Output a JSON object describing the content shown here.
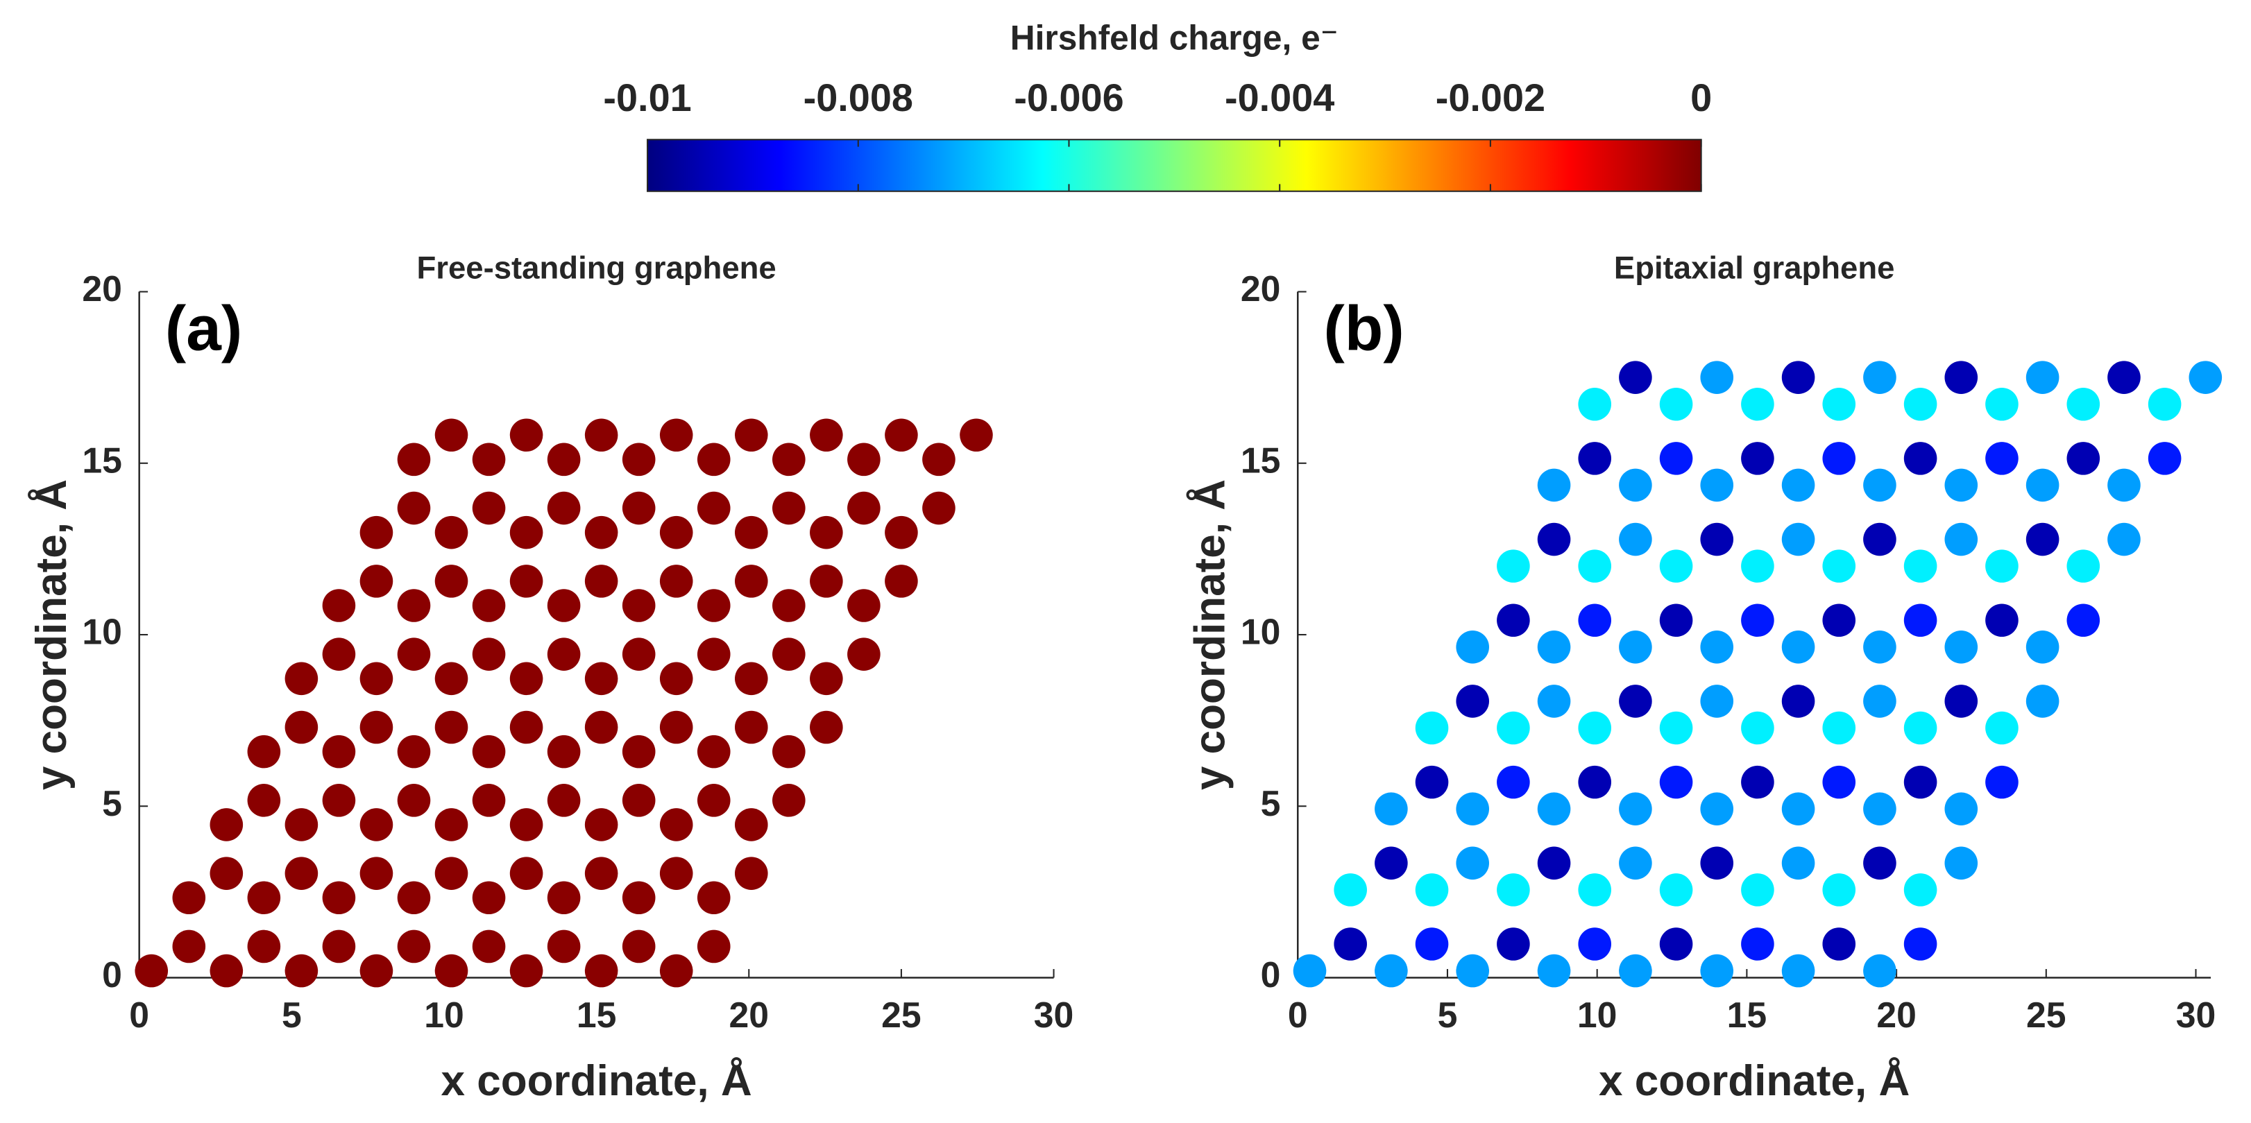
{
  "colorbar": {
    "title": "Hirshfeld charge, e⁻",
    "colormap": "jet",
    "clim": [
      -0.01,
      0
    ],
    "ticks": [
      -0.01,
      -0.008,
      -0.006,
      -0.004,
      -0.002,
      0
    ]
  },
  "chart_data": [
    {
      "type": "scatter",
      "title": "Free-standing graphene",
      "label": "(a)",
      "xlabel": "x coordinate, Å",
      "ylabel": "y coordinate, Å",
      "xlim": [
        0,
        30
      ],
      "ylim": [
        0,
        20
      ],
      "xticks": [
        0,
        5,
        10,
        15,
        20,
        25,
        30
      ],
      "yticks": [
        0,
        5,
        10,
        15,
        20
      ],
      "x": [
        0.4,
        2.86,
        5.32,
        7.78,
        10.24,
        12.7,
        15.16,
        17.62,
        1.63,
        4.09,
        6.55,
        9.01,
        11.47,
        13.93,
        16.39,
        18.85,
        1.63,
        4.09,
        6.55,
        9.01,
        11.47,
        13.93,
        16.39,
        18.85,
        2.86,
        5.32,
        7.78,
        10.24,
        12.7,
        15.16,
        17.62,
        20.08,
        2.86,
        5.32,
        7.78,
        10.24,
        12.7,
        15.16,
        17.62,
        20.08,
        4.09,
        6.55,
        9.01,
        11.47,
        13.93,
        16.39,
        18.85,
        21.31,
        4.09,
        6.55,
        9.01,
        11.47,
        13.93,
        16.39,
        18.85,
        21.31,
        5.32,
        7.78,
        10.24,
        12.7,
        15.16,
        17.62,
        20.08,
        22.54,
        5.32,
        7.78,
        10.24,
        12.7,
        15.16,
        17.62,
        20.08,
        22.54,
        6.55,
        9.01,
        11.47,
        13.93,
        16.39,
        18.85,
        21.31,
        23.77,
        6.55,
        9.01,
        11.47,
        13.93,
        16.39,
        18.85,
        21.31,
        23.77,
        7.78,
        10.24,
        12.7,
        15.16,
        17.62,
        20.08,
        22.54,
        25,
        7.78,
        10.24,
        12.7,
        15.16,
        17.62,
        20.08,
        22.54,
        25,
        9.01,
        11.47,
        13.93,
        16.39,
        18.85,
        21.31,
        23.77,
        26.23,
        9.01,
        11.47,
        13.93,
        16.39,
        18.85,
        21.31,
        23.77,
        26.23,
        10.24,
        12.7,
        15.16,
        17.62,
        20.08,
        22.54,
        25,
        27.46
      ],
      "y": [
        0.2,
        0.2,
        0.2,
        0.2,
        0.2,
        0.2,
        0.2,
        0.2,
        0.91,
        0.91,
        0.91,
        0.91,
        0.91,
        0.91,
        0.91,
        0.91,
        2.33,
        2.33,
        2.33,
        2.33,
        2.33,
        2.33,
        2.33,
        2.33,
        3.04,
        3.04,
        3.04,
        3.04,
        3.04,
        3.04,
        3.04,
        3.04,
        4.46,
        4.46,
        4.46,
        4.46,
        4.46,
        4.46,
        4.46,
        4.46,
        5.17,
        5.17,
        5.17,
        5.17,
        5.17,
        5.17,
        5.17,
        5.17,
        6.59,
        6.59,
        6.59,
        6.59,
        6.59,
        6.59,
        6.59,
        6.59,
        7.3,
        7.3,
        7.3,
        7.3,
        7.3,
        7.3,
        7.3,
        7.3,
        8.72,
        8.72,
        8.72,
        8.72,
        8.72,
        8.72,
        8.72,
        8.72,
        9.43,
        9.43,
        9.43,
        9.43,
        9.43,
        9.43,
        9.43,
        9.43,
        10.85,
        10.85,
        10.85,
        10.85,
        10.85,
        10.85,
        10.85,
        10.85,
        11.56,
        11.56,
        11.56,
        11.56,
        11.56,
        11.56,
        11.56,
        11.56,
        12.98,
        12.98,
        12.98,
        12.98,
        12.98,
        12.98,
        12.98,
        12.98,
        13.69,
        13.69,
        13.69,
        13.69,
        13.69,
        13.69,
        13.69,
        13.69,
        15.11,
        15.11,
        15.11,
        15.11,
        15.11,
        15.11,
        15.11,
        15.11,
        15.82,
        15.82,
        15.82,
        15.82,
        15.82,
        15.82,
        15.82,
        15.82
      ],
      "charge": [
        -0.0001,
        -0.0001,
        -0.0001,
        -0.0001,
        -0.0001,
        -0.0001,
        -0.0001,
        -0.0001,
        -0.0001,
        -0.0001,
        -0.0001,
        -0.0001,
        -0.0001,
        -0.0001,
        -0.0001,
        -0.0001,
        -0.0001,
        -0.0001,
        -0.0001,
        -0.0001,
        -0.0001,
        -0.0001,
        -0.0001,
        -0.0001,
        -0.0001,
        -0.0001,
        -0.0001,
        -0.0001,
        -0.0001,
        -0.0001,
        -0.0001,
        -0.0001,
        -0.0001,
        -0.0001,
        -0.0001,
        -0.0001,
        -0.0001,
        -0.0001,
        -0.0001,
        -0.0001,
        -0.0001,
        -0.0001,
        -0.0001,
        -0.0001,
        -0.0001,
        -0.0001,
        -0.0001,
        -0.0001,
        -0.0001,
        -0.0001,
        -0.0001,
        -0.0001,
        -0.0001,
        -0.0001,
        -0.0001,
        -0.0001,
        -0.0001,
        -0.0001,
        -0.0001,
        -0.0001,
        -0.0001,
        -0.0001,
        -0.0001,
        -0.0001,
        -0.0001,
        -0.0001,
        -0.0001,
        -0.0001,
        -0.0001,
        -0.0001,
        -0.0001,
        -0.0001,
        -0.0001,
        -0.0001,
        -0.0001,
        -0.0001,
        -0.0001,
        -0.0001,
        -0.0001,
        -0.0001,
        -0.0001,
        -0.0001,
        -0.0001,
        -0.0001,
        -0.0001,
        -0.0001,
        -0.0001,
        -0.0001,
        -0.0001,
        -0.0001,
        -0.0001,
        -0.0001,
        -0.0001,
        -0.0001,
        -0.0001,
        -0.0001,
        -0.0001,
        -0.0001,
        -0.0001,
        -0.0001,
        -0.0001,
        -0.0001,
        -0.0001,
        -0.0001,
        -0.0001,
        -0.0001,
        -0.0001,
        -0.0001,
        -0.0001,
        -0.0001,
        -0.0001,
        -0.0001,
        -0.0001,
        -0.0001,
        -0.0001,
        -0.0001,
        -0.0001,
        -0.0001,
        -0.0001,
        -0.0001,
        -0.0001,
        -0.0001,
        -0.0001,
        -0.0001,
        -0.0001,
        -0.0001,
        -0.0001,
        -0.0001
      ]
    },
    {
      "type": "scatter",
      "title": "Epitaxial graphene",
      "label": "(b)",
      "xlabel": "x coordinate, Å",
      "ylabel": "y coordinate, Å",
      "xlim": [
        0,
        30.5
      ],
      "ylim": [
        0,
        20
      ],
      "xticks": [
        0,
        5,
        10,
        15,
        20,
        25,
        30
      ],
      "yticks": [
        0,
        5,
        10,
        15,
        20
      ],
      "x": [
        0.4,
        3.12,
        5.84,
        8.56,
        11.28,
        14,
        16.72,
        19.44,
        1.76,
        4.48,
        7.2,
        9.92,
        12.64,
        15.36,
        18.08,
        20.8,
        1.76,
        4.48,
        7.2,
        9.92,
        12.64,
        15.36,
        18.08,
        20.8,
        3.12,
        5.84,
        8.56,
        11.28,
        14,
        16.72,
        19.44,
        22.16,
        3.12,
        5.84,
        8.56,
        11.28,
        14,
        16.72,
        19.44,
        22.16,
        4.48,
        7.2,
        9.92,
        12.64,
        15.36,
        18.08,
        20.8,
        23.52,
        4.48,
        7.2,
        9.92,
        12.64,
        15.36,
        18.08,
        20.8,
        23.52,
        5.84,
        8.56,
        11.28,
        14,
        16.72,
        19.44,
        22.16,
        24.88,
        5.84,
        8.56,
        11.28,
        14,
        16.72,
        19.44,
        22.16,
        24.88,
        7.2,
        9.92,
        12.64,
        15.36,
        18.08,
        20.8,
        23.52,
        26.24,
        7.2,
        9.92,
        12.64,
        15.36,
        18.08,
        20.8,
        23.52,
        26.24,
        8.56,
        11.28,
        14,
        16.72,
        19.44,
        22.16,
        24.88,
        27.6,
        8.56,
        11.28,
        14,
        16.72,
        19.44,
        22.16,
        24.88,
        27.6,
        9.92,
        12.64,
        15.36,
        18.08,
        20.8,
        23.52,
        26.24,
        28.96,
        9.92,
        12.64,
        15.36,
        18.08,
        20.8,
        23.52,
        26.24,
        28.96,
        11.28,
        14,
        16.72,
        19.44,
        22.16,
        24.88,
        27.6,
        30.32
      ],
      "y": [
        0.2,
        0.2,
        0.2,
        0.2,
        0.2,
        0.2,
        0.2,
        0.2,
        0.98,
        0.98,
        0.98,
        0.98,
        0.98,
        0.98,
        0.98,
        0.98,
        2.56,
        2.56,
        2.56,
        2.56,
        2.56,
        2.56,
        2.56,
        2.56,
        3.34,
        3.34,
        3.34,
        3.34,
        3.34,
        3.34,
        3.34,
        3.34,
        4.92,
        4.92,
        4.92,
        4.92,
        4.92,
        4.92,
        4.92,
        4.92,
        5.7,
        5.7,
        5.7,
        5.7,
        5.7,
        5.7,
        5.7,
        5.7,
        7.28,
        7.28,
        7.28,
        7.28,
        7.28,
        7.28,
        7.28,
        7.28,
        8.06,
        8.06,
        8.06,
        8.06,
        8.06,
        8.06,
        8.06,
        8.06,
        9.64,
        9.64,
        9.64,
        9.64,
        9.64,
        9.64,
        9.64,
        9.64,
        10.42,
        10.42,
        10.42,
        10.42,
        10.42,
        10.42,
        10.42,
        10.42,
        12,
        12,
        12,
        12,
        12,
        12,
        12,
        12,
        12.78,
        12.78,
        12.78,
        12.78,
        12.78,
        12.78,
        12.78,
        12.78,
        14.36,
        14.36,
        14.36,
        14.36,
        14.36,
        14.36,
        14.36,
        14.36,
        15.14,
        15.14,
        15.14,
        15.14,
        15.14,
        15.14,
        15.14,
        15.14,
        16.72,
        16.72,
        16.72,
        16.72,
        16.72,
        16.72,
        16.72,
        16.72,
        17.5,
        17.5,
        17.5,
        17.5,
        17.5,
        17.5,
        17.5,
        17.5
      ],
      "charge": [
        -0.0072,
        -0.0072,
        -0.0072,
        -0.0072,
        -0.0072,
        -0.0072,
        -0.0072,
        -0.0072,
        -0.0095,
        -0.0085,
        -0.0095,
        -0.0085,
        -0.0095,
        -0.0085,
        -0.0095,
        -0.0085,
        -0.0064,
        -0.0064,
        -0.0064,
        -0.0064,
        -0.0064,
        -0.0064,
        -0.0064,
        -0.0064,
        -0.0095,
        -0.0072,
        -0.0095,
        -0.0072,
        -0.0095,
        -0.0072,
        -0.0095,
        -0.0072,
        -0.0072,
        -0.0072,
        -0.0072,
        -0.0072,
        -0.0072,
        -0.0072,
        -0.0072,
        -0.0072,
        -0.0095,
        -0.0085,
        -0.0095,
        -0.0085,
        -0.0095,
        -0.0085,
        -0.0095,
        -0.0085,
        -0.0064,
        -0.0064,
        -0.0064,
        -0.0064,
        -0.0064,
        -0.0064,
        -0.0064,
        -0.0064,
        -0.0095,
        -0.0072,
        -0.0095,
        -0.0072,
        -0.0095,
        -0.0072,
        -0.0095,
        -0.0072,
        -0.0072,
        -0.0072,
        -0.0072,
        -0.0072,
        -0.0072,
        -0.0072,
        -0.0072,
        -0.0072,
        -0.0095,
        -0.0085,
        -0.0095,
        -0.0085,
        -0.0095,
        -0.0085,
        -0.0095,
        -0.0085,
        -0.0064,
        -0.0064,
        -0.0064,
        -0.0064,
        -0.0064,
        -0.0064,
        -0.0064,
        -0.0064,
        -0.0095,
        -0.0072,
        -0.0095,
        -0.0072,
        -0.0095,
        -0.0072,
        -0.0095,
        -0.0072,
        -0.0072,
        -0.0072,
        -0.0072,
        -0.0072,
        -0.0072,
        -0.0072,
        -0.0072,
        -0.0072,
        -0.0095,
        -0.0085,
        -0.0095,
        -0.0085,
        -0.0095,
        -0.0085,
        -0.0095,
        -0.0085,
        -0.0064,
        -0.0064,
        -0.0064,
        -0.0064,
        -0.0064,
        -0.0064,
        -0.0064,
        -0.0064,
        -0.0095,
        -0.0072,
        -0.0095,
        -0.0072,
        -0.0095,
        -0.0072,
        -0.0095,
        -0.0072
      ]
    }
  ]
}
